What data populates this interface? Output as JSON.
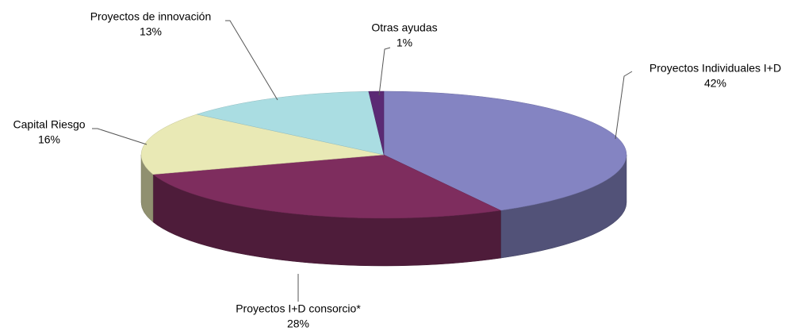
{
  "chart_data": {
    "type": "pie",
    "categories": [
      "Proyectos Individuales I+D",
      "Proyectos I+D consorcio*",
      "Capital Riesgo",
      "Proyectos de innovación",
      "Otras ayudas"
    ],
    "values": [
      42,
      28,
      16,
      13,
      1
    ],
    "value_labels": [
      "42%",
      "28%",
      "16%",
      "13%",
      "1%"
    ],
    "colors": [
      "#8484c2",
      "#7e2d5e",
      "#e9e9b5",
      "#aadde2",
      "#5b2a74"
    ]
  }
}
